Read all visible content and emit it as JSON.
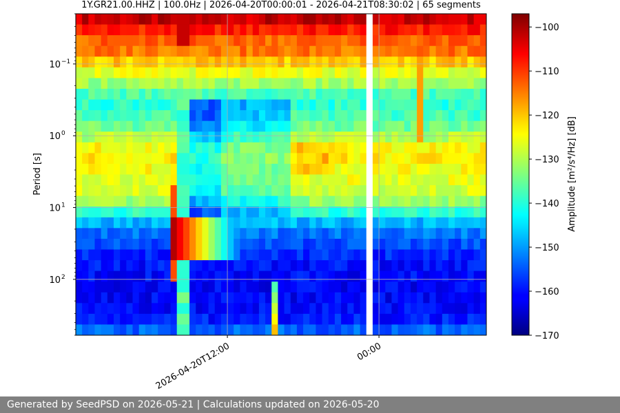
{
  "footer": "Generated by SeedPSD on 2026-05-21 | Calculations updated on 2026-05-20",
  "chart_data": {
    "type": "heatmap",
    "title": "1Y.GR21.00.HHZ | 100.0Hz | 2026-04-20T00:00:01 - 2026-04-21T08:30:02 | 65 segments",
    "xlabel": "",
    "ylabel": "Period [s]",
    "colorbar_label": "Amplitude [m²/s⁴/Hz] [dB]",
    "colorbar_ticks": [
      "−100",
      "−110",
      "−120",
      "−130",
      "−140",
      "−150",
      "−160",
      "−170"
    ],
    "colorbar_range": [
      -170,
      -97
    ],
    "colormap": "jet",
    "x_tick_labels": [
      "2026-04-20T12:00",
      "00:00"
    ],
    "y_tick_labels": [
      {
        "base": "10",
        "exp": "−1"
      },
      {
        "base": "10",
        "exp": "0"
      },
      {
        "base": "10",
        "exp": "1"
      },
      {
        "base": "10",
        "exp": "2"
      }
    ],
    "y_scale": "log",
    "y_axis_inverted": true,
    "grid": true,
    "segments": 65,
    "time_range": [
      "2026-04-20T00:00:01",
      "2026-04-21T08:30:02"
    ],
    "n_time_columns": 65,
    "n_period_rows": 30,
    "period_range_s": [
      0.02,
      600
    ],
    "gap_column": 46
  }
}
